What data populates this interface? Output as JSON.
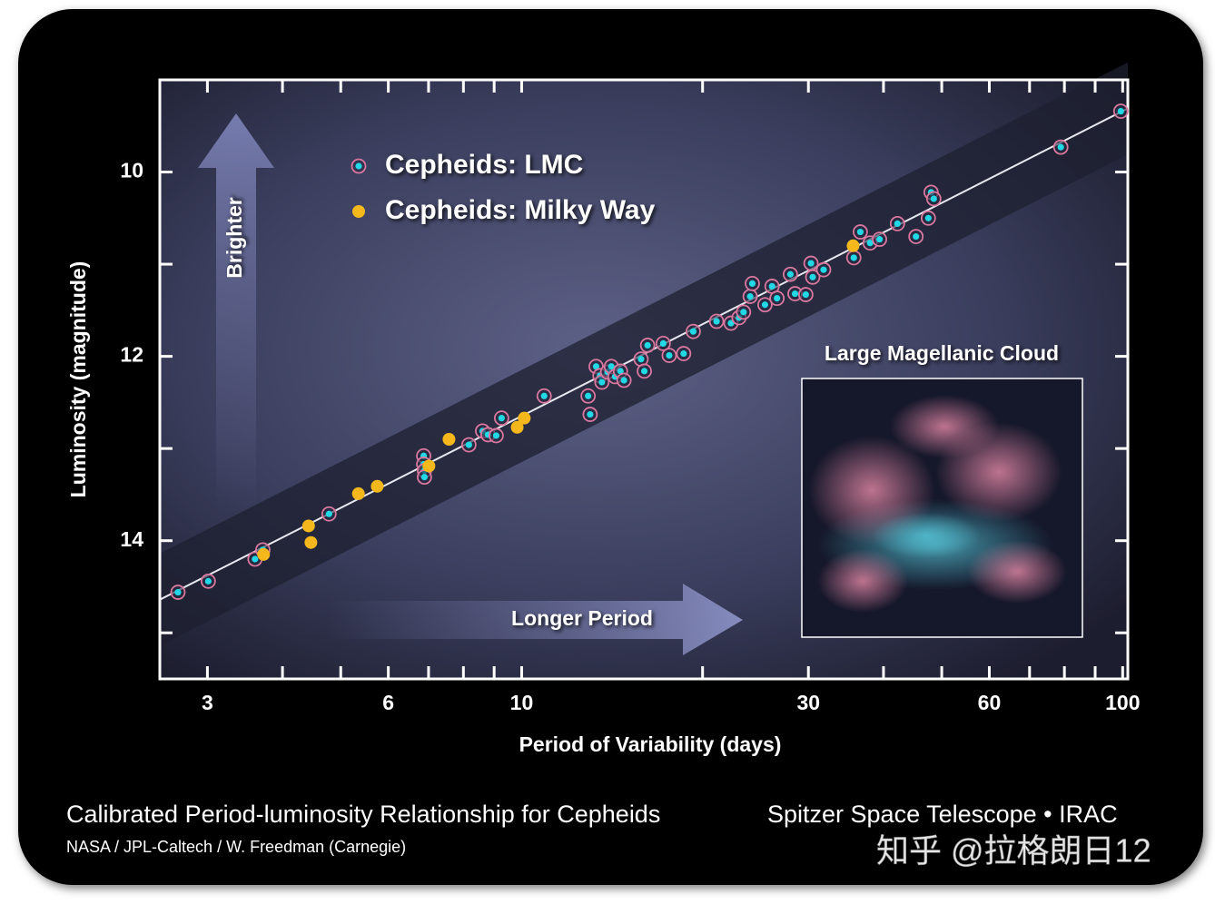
{
  "chart_data": {
    "type": "scatter",
    "xlabel": "Period of Variability (days)",
    "ylabel": "Luminosity (magnitude)",
    "xlog": true,
    "xlim": [
      2.5,
      102
    ],
    "ylim": [
      15.5,
      9
    ],
    "xticks": [
      3,
      6,
      10,
      30,
      60,
      100
    ],
    "yticks": [
      10,
      12,
      14
    ],
    "xminorticks": [
      4,
      5,
      7,
      8,
      9,
      20,
      40,
      50,
      70,
      80,
      90
    ],
    "yminorticks": [
      9,
      11,
      13,
      15
    ],
    "series": [
      {
        "name": "Cepheids: LMC",
        "color": "#22d8e6",
        "edgecolor": "#d9789e",
        "x": [
          2.68,
          3.01,
          3.6,
          3.71,
          4.78,
          6.87,
          6.87,
          6.89,
          6.89,
          8.61,
          8.79,
          9.07,
          9.26,
          8.17,
          10.9,
          13.0,
          12.9,
          13.3,
          13.5,
          13.6,
          13.9,
          14.1,
          14.3,
          14.6,
          14.8,
          15.8,
          16.0,
          16.2,
          17.2,
          17.6,
          18.6,
          19.3,
          21.1,
          22.3,
          23.0,
          23.4,
          24.0,
          24.2,
          25.4,
          26.1,
          26.6,
          28.0,
          28.5,
          29.7,
          30.3,
          30.5,
          31.8,
          35.7,
          36.6,
          38.0,
          39.4,
          42.2,
          45.3,
          47.5,
          48.0,
          48.5,
          78.9,
          99.3
        ],
        "y": [
          14.56,
          14.44,
          14.2,
          14.1,
          13.71,
          13.08,
          13.17,
          13.24,
          13.31,
          12.81,
          12.85,
          12.86,
          12.67,
          12.96,
          12.43,
          12.63,
          12.43,
          12.11,
          12.21,
          12.28,
          12.17,
          12.11,
          12.22,
          12.16,
          12.26,
          12.03,
          12.16,
          11.88,
          11.86,
          11.99,
          11.97,
          11.73,
          11.62,
          11.64,
          11.58,
          11.52,
          11.35,
          11.21,
          11.44,
          11.24,
          11.37,
          11.11,
          11.32,
          11.33,
          10.99,
          11.14,
          11.06,
          10.93,
          10.65,
          10.77,
          10.73,
          10.56,
          10.7,
          10.5,
          10.22,
          10.29,
          9.73,
          9.34
        ]
      },
      {
        "name": "Cepheids: Milky Way",
        "color": "#f5b81c",
        "x": [
          3.72,
          4.42,
          4.46,
          5.35,
          5.75,
          7.01,
          7.57,
          9.83,
          10.1,
          35.6
        ],
        "y": [
          14.15,
          13.84,
          14.02,
          13.49,
          13.41,
          13.19,
          12.9,
          12.77,
          12.67,
          10.8
        ]
      }
    ],
    "fit": {
      "x": [
        2.5,
        102
      ],
      "y": [
        14.64,
        9.31
      ],
      "band": 0.5
    },
    "annotations": {
      "up": "Brighter",
      "right": "Longer Period",
      "inset": "Large Magellanic Cloud"
    }
  },
  "footer": {
    "title": "Calibrated Period-luminosity Relationship for Cepheids",
    "credit": "NASA / JPL-Caltech / W. Freedman (Carnegie)",
    "mission": "Spitzer Space Telescope • IRAC",
    "watermark": "知乎 @拉格朗日12"
  }
}
